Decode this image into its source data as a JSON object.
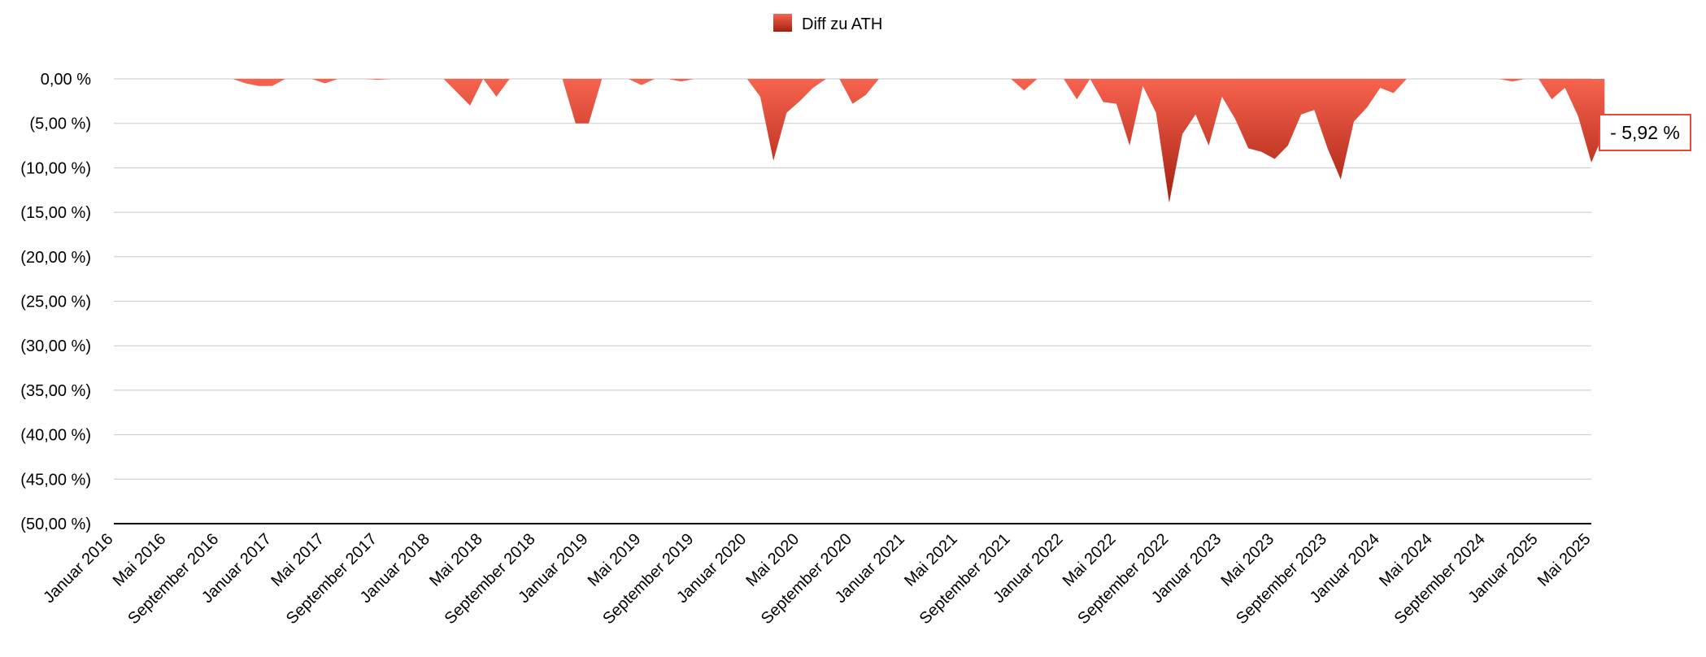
{
  "chart_data": {
    "type": "area",
    "legend": {
      "label": "Diff zu ATH",
      "position": "top-center"
    },
    "ylim": [
      -50,
      0
    ],
    "y_ticks": [
      0,
      -5,
      -10,
      -15,
      -20,
      -25,
      -30,
      -35,
      -40,
      -45,
      -50
    ],
    "y_tick_labels": [
      "0,00 %",
      "(5,00 %)",
      "(10,00 %)",
      "(15,00 %)",
      "(20,00 %)",
      "(25,00 %)",
      "(30,00 %)",
      "(35,00 %)",
      "(40,00 %)",
      "(45,00 %)",
      "(50,00 %)"
    ],
    "x_tick_labels": [
      "Januar 2016",
      "Mai 2016",
      "September 2016",
      "Januar 2017",
      "Mai 2017",
      "September 2017",
      "Januar 2018",
      "Mai 2018",
      "September 2018",
      "Januar 2019",
      "Mai 2019",
      "September 2019",
      "Januar 2020",
      "Mai 2020",
      "September 2020",
      "Januar 2021",
      "Mai 2021",
      "September 2021",
      "Januar 2022",
      "Mai 2022",
      "September 2022",
      "Januar 2023",
      "Mai 2023",
      "September 2023",
      "Januar 2024",
      "Mai 2024",
      "September 2024",
      "Januar 2025",
      "Mai 2025"
    ],
    "grid": true,
    "colors": {
      "area_top": "#f7634f",
      "area_bottom": "#a5200f",
      "grid": "#c8c8c8",
      "axis": "#000000",
      "callout_border": "#e8493a"
    },
    "series": [
      {
        "name": "Diff zu ATH",
        "points": [
          [
            "2016-01",
            0
          ],
          [
            "2016-04",
            0
          ],
          [
            "2016-07",
            0
          ],
          [
            "2016-10",
            0
          ],
          [
            "2016-11",
            -0.5
          ],
          [
            "2016-12",
            -0.8
          ],
          [
            "2017-01",
            -0.8
          ],
          [
            "2017-02",
            0
          ],
          [
            "2017-03",
            0
          ],
          [
            "2017-04",
            0
          ],
          [
            "2017-05",
            -0.5
          ],
          [
            "2017-06",
            0
          ],
          [
            "2017-08",
            0
          ],
          [
            "2017-09",
            -0.1
          ],
          [
            "2017-10",
            0
          ],
          [
            "2017-12",
            0
          ],
          [
            "2018-01",
            0
          ],
          [
            "2018-02",
            0
          ],
          [
            "2018-03",
            -1.5
          ],
          [
            "2018-04",
            -3.0
          ],
          [
            "2018-05",
            0
          ],
          [
            "2018-06",
            -2.0
          ],
          [
            "2018-07",
            0
          ],
          [
            "2018-08",
            0
          ],
          [
            "2018-09",
            0
          ],
          [
            "2018-10",
            0
          ],
          [
            "2018-11",
            0
          ],
          [
            "2018-12",
            -5.0
          ],
          [
            "2019-01",
            -5.0
          ],
          [
            "2019-02",
            0
          ],
          [
            "2019-03",
            0
          ],
          [
            "2019-04",
            0
          ],
          [
            "2019-05",
            -0.7
          ],
          [
            "2019-06",
            0
          ],
          [
            "2019-07",
            0
          ],
          [
            "2019-08",
            -0.3
          ],
          [
            "2019-09",
            0
          ],
          [
            "2019-10",
            0
          ],
          [
            "2019-11",
            0
          ],
          [
            "2019-12",
            0
          ],
          [
            "2020-01",
            0
          ],
          [
            "2020-02",
            -2.0
          ],
          [
            "2020-03",
            -9.2
          ],
          [
            "2020-04",
            -3.8
          ],
          [
            "2020-05",
            -2.5
          ],
          [
            "2020-06",
            -1.0
          ],
          [
            "2020-07",
            0
          ],
          [
            "2020-08",
            0
          ],
          [
            "2020-09",
            -2.8
          ],
          [
            "2020-10",
            -1.8
          ],
          [
            "2020-11",
            0
          ],
          [
            "2020-12",
            0
          ],
          [
            "2021-01",
            0
          ],
          [
            "2021-03",
            0
          ],
          [
            "2021-05",
            0
          ],
          [
            "2021-07",
            0
          ],
          [
            "2021-09",
            0
          ],
          [
            "2021-10",
            -1.3
          ],
          [
            "2021-11",
            0
          ],
          [
            "2021-12",
            0
          ],
          [
            "2022-01",
            0
          ],
          [
            "2022-02",
            -2.3
          ],
          [
            "2022-03",
            0
          ],
          [
            "2022-04",
            -2.6
          ],
          [
            "2022-05",
            -2.8
          ],
          [
            "2022-06",
            -7.5
          ],
          [
            "2022-07",
            -0.8
          ],
          [
            "2022-08",
            -3.8
          ],
          [
            "2022-09",
            -13.9
          ],
          [
            "2022-10",
            -6.2
          ],
          [
            "2022-11",
            -4.0
          ],
          [
            "2022-12",
            -7.5
          ],
          [
            "2023-01",
            -2.0
          ],
          [
            "2023-02",
            -4.5
          ],
          [
            "2023-03",
            -7.8
          ],
          [
            "2023-04",
            -8.2
          ],
          [
            "2023-05",
            -9.0
          ],
          [
            "2023-06",
            -7.5
          ],
          [
            "2023-07",
            -4.0
          ],
          [
            "2023-08",
            -3.5
          ],
          [
            "2023-09",
            -7.8
          ],
          [
            "2023-10",
            -11.3
          ],
          [
            "2023-11",
            -4.8
          ],
          [
            "2023-12",
            -3.2
          ],
          [
            "2024-01",
            -1.0
          ],
          [
            "2024-02",
            -1.6
          ],
          [
            "2024-03",
            0
          ],
          [
            "2024-05",
            0
          ],
          [
            "2024-07",
            0
          ],
          [
            "2024-09",
            0
          ],
          [
            "2024-10",
            0
          ],
          [
            "2024-11",
            -0.3
          ],
          [
            "2024-12",
            0
          ],
          [
            "2025-01",
            0
          ],
          [
            "2025-02",
            -2.3
          ],
          [
            "2025-03",
            -1.0
          ],
          [
            "2025-04",
            -4.2
          ],
          [
            "2025-05",
            -9.4
          ],
          [
            "2025-06",
            -5.92
          ]
        ]
      }
    ],
    "last_value_label": "- 5,92 %"
  }
}
